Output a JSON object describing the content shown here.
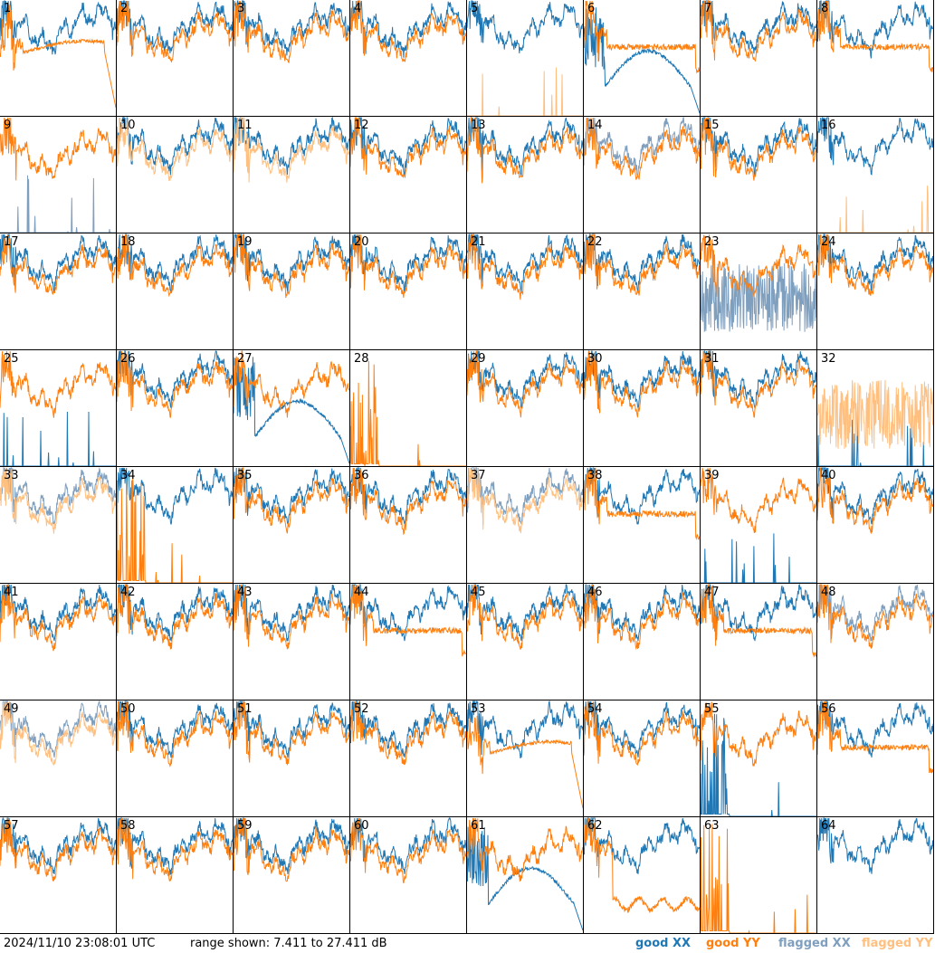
{
  "footer": {
    "timestamp": "2024/11/10 23:08:01 UTC",
    "range": "range shown: 7.411 to 27.411 dB"
  },
  "legend": [
    {
      "label": "good XX",
      "color": "#1f77b4"
    },
    {
      "label": "good YY",
      "color": "#ff7f0e"
    },
    {
      "label": "flagged XX",
      "color": "#7f9fbf"
    },
    {
      "label": "flagged YY",
      "color": "#ffbf7f"
    }
  ],
  "chart_data": {
    "type": "line",
    "title": "",
    "xlabel": "",
    "ylabel": "",
    "ylim": [
      7.411,
      27.411
    ],
    "grid": false,
    "panel_grid": [
      8,
      8
    ],
    "panels": [
      {
        "num": "1",
        "xx": "good",
        "yy": "good",
        "xx_shape": "normal",
        "yy_shape": "dropout-right"
      },
      {
        "num": "2",
        "xx": "good",
        "yy": "good",
        "xx_shape": "normal",
        "yy_shape": "normal"
      },
      {
        "num": "3",
        "xx": "good",
        "yy": "good",
        "xx_shape": "normal",
        "yy_shape": "normal"
      },
      {
        "num": "4",
        "xx": "good",
        "yy": "good",
        "xx_shape": "normal",
        "yy_shape": "normal"
      },
      {
        "num": "5",
        "xx": "good",
        "yy": "flagged",
        "xx_shape": "normal",
        "yy_shape": "spikes-low"
      },
      {
        "num": "6",
        "xx": "good",
        "yy": "good",
        "xx_shape": "bowl",
        "yy_shape": "flat"
      },
      {
        "num": "7",
        "xx": "good",
        "yy": "good",
        "xx_shape": "normal",
        "yy_shape": "normal"
      },
      {
        "num": "8",
        "xx": "good",
        "yy": "good",
        "xx_shape": "normal",
        "yy_shape": "flat"
      },
      {
        "num": "9",
        "xx": "flagged",
        "yy": "good",
        "xx_shape": "spikes-low",
        "yy_shape": "normal"
      },
      {
        "num": "10",
        "xx": "good",
        "yy": "flagged",
        "xx_shape": "normal",
        "yy_shape": "normal"
      },
      {
        "num": "11",
        "xx": "good",
        "yy": "flagged",
        "xx_shape": "normal",
        "yy_shape": "normal"
      },
      {
        "num": "12",
        "xx": "good",
        "yy": "good",
        "xx_shape": "normal",
        "yy_shape": "normal"
      },
      {
        "num": "13",
        "xx": "good",
        "yy": "good",
        "xx_shape": "normal",
        "yy_shape": "normal"
      },
      {
        "num": "14",
        "xx": "flagged",
        "yy": "good",
        "xx_shape": "normal",
        "yy_shape": "normal"
      },
      {
        "num": "15",
        "xx": "good",
        "yy": "good",
        "xx_shape": "normal",
        "yy_shape": "normal"
      },
      {
        "num": "16",
        "xx": "good",
        "yy": "flagged",
        "xx_shape": "normal",
        "yy_shape": "spikes-low"
      },
      {
        "num": "17",
        "xx": "good",
        "yy": "good",
        "xx_shape": "normal",
        "yy_shape": "normal"
      },
      {
        "num": "18",
        "xx": "good",
        "yy": "good",
        "xx_shape": "normal",
        "yy_shape": "normal"
      },
      {
        "num": "19",
        "xx": "good",
        "yy": "good",
        "xx_shape": "normal",
        "yy_shape": "normal"
      },
      {
        "num": "20",
        "xx": "good",
        "yy": "good",
        "xx_shape": "normal",
        "yy_shape": "normal"
      },
      {
        "num": "21",
        "xx": "good",
        "yy": "good",
        "xx_shape": "normal",
        "yy_shape": "normal"
      },
      {
        "num": "22",
        "xx": "good",
        "yy": "good",
        "xx_shape": "normal",
        "yy_shape": "normal"
      },
      {
        "num": "23",
        "xx": "flagged",
        "yy": "good",
        "xx_shape": "noise",
        "yy_shape": "normal"
      },
      {
        "num": "24",
        "xx": "good",
        "yy": "good",
        "xx_shape": "normal",
        "yy_shape": "normal"
      },
      {
        "num": "25",
        "xx": "good",
        "yy": "good",
        "xx_shape": "spikes-low",
        "yy_shape": "normal"
      },
      {
        "num": "26",
        "xx": "good",
        "yy": "good",
        "xx_shape": "normal",
        "yy_shape": "normal"
      },
      {
        "num": "27",
        "xx": "good",
        "yy": "good",
        "xx_shape": "bowl",
        "yy_shape": "normal"
      },
      {
        "num": "28",
        "xx": "none",
        "yy": "good",
        "xx_shape": "none",
        "yy_shape": "spikes-left"
      },
      {
        "num": "29",
        "xx": "good",
        "yy": "good",
        "xx_shape": "normal",
        "yy_shape": "normal"
      },
      {
        "num": "30",
        "xx": "good",
        "yy": "good",
        "xx_shape": "normal",
        "yy_shape": "normal"
      },
      {
        "num": "31",
        "xx": "good",
        "yy": "good",
        "xx_shape": "normal",
        "yy_shape": "normal"
      },
      {
        "num": "32",
        "xx": "good",
        "yy": "flagged",
        "xx_shape": "spikes-low",
        "yy_shape": "noise"
      },
      {
        "num": "33",
        "xx": "flagged",
        "yy": "flagged",
        "xx_shape": "normal",
        "yy_shape": "normal"
      },
      {
        "num": "34",
        "xx": "good",
        "yy": "good",
        "xx_shape": "normal",
        "yy_shape": "spikes-left"
      },
      {
        "num": "35",
        "xx": "good",
        "yy": "good",
        "xx_shape": "normal",
        "yy_shape": "normal"
      },
      {
        "num": "36",
        "xx": "good",
        "yy": "good",
        "xx_shape": "normal",
        "yy_shape": "normal"
      },
      {
        "num": "37",
        "xx": "flagged",
        "yy": "flagged",
        "xx_shape": "normal",
        "yy_shape": "normal"
      },
      {
        "num": "38",
        "xx": "good",
        "yy": "good",
        "xx_shape": "normal",
        "yy_shape": "flat"
      },
      {
        "num": "39",
        "xx": "good",
        "yy": "good",
        "xx_shape": "spikes-low",
        "yy_shape": "normal"
      },
      {
        "num": "40",
        "xx": "good",
        "yy": "good",
        "xx_shape": "normal",
        "yy_shape": "normal"
      },
      {
        "num": "41",
        "xx": "good",
        "yy": "good",
        "xx_shape": "normal",
        "yy_shape": "normal"
      },
      {
        "num": "42",
        "xx": "good",
        "yy": "good",
        "xx_shape": "normal",
        "yy_shape": "normal"
      },
      {
        "num": "43",
        "xx": "good",
        "yy": "good",
        "xx_shape": "normal",
        "yy_shape": "normal"
      },
      {
        "num": "44",
        "xx": "good",
        "yy": "good",
        "xx_shape": "normal",
        "yy_shape": "flat"
      },
      {
        "num": "45",
        "xx": "good",
        "yy": "good",
        "xx_shape": "normal",
        "yy_shape": "normal"
      },
      {
        "num": "46",
        "xx": "good",
        "yy": "good",
        "xx_shape": "normal",
        "yy_shape": "normal"
      },
      {
        "num": "47",
        "xx": "good",
        "yy": "good",
        "xx_shape": "normal",
        "yy_shape": "flat"
      },
      {
        "num": "48",
        "xx": "flagged",
        "yy": "good",
        "xx_shape": "normal",
        "yy_shape": "normal"
      },
      {
        "num": "49",
        "xx": "flagged",
        "yy": "flagged",
        "xx_shape": "normal",
        "yy_shape": "normal"
      },
      {
        "num": "50",
        "xx": "good",
        "yy": "good",
        "xx_shape": "normal",
        "yy_shape": "normal"
      },
      {
        "num": "51",
        "xx": "good",
        "yy": "good",
        "xx_shape": "normal",
        "yy_shape": "normal"
      },
      {
        "num": "52",
        "xx": "good",
        "yy": "good",
        "xx_shape": "normal",
        "yy_shape": "normal"
      },
      {
        "num": "53",
        "xx": "good",
        "yy": "good",
        "xx_shape": "normal",
        "yy_shape": "dropout-right"
      },
      {
        "num": "54",
        "xx": "good",
        "yy": "good",
        "xx_shape": "normal",
        "yy_shape": "normal"
      },
      {
        "num": "55",
        "xx": "good",
        "yy": "good",
        "xx_shape": "spikes-left",
        "yy_shape": "normal"
      },
      {
        "num": "56",
        "xx": "good",
        "yy": "good",
        "xx_shape": "normal",
        "yy_shape": "flat"
      },
      {
        "num": "57",
        "xx": "good",
        "yy": "good",
        "xx_shape": "normal",
        "yy_shape": "normal"
      },
      {
        "num": "58",
        "xx": "good",
        "yy": "good",
        "xx_shape": "normal",
        "yy_shape": "normal"
      },
      {
        "num": "59",
        "xx": "good",
        "yy": "good",
        "xx_shape": "normal",
        "yy_shape": "normal"
      },
      {
        "num": "60",
        "xx": "good",
        "yy": "good",
        "xx_shape": "normal",
        "yy_shape": "normal"
      },
      {
        "num": "61",
        "xx": "good",
        "yy": "good",
        "xx_shape": "bowl",
        "yy_shape": "normal"
      },
      {
        "num": "62",
        "xx": "good",
        "yy": "good",
        "xx_shape": "normal",
        "yy_shape": "low"
      },
      {
        "num": "63",
        "xx": "none",
        "yy": "good",
        "xx_shape": "none",
        "yy_shape": "spikes-left"
      },
      {
        "num": "64",
        "xx": "good",
        "yy": "none",
        "xx_shape": "normal",
        "yy_shape": "none"
      }
    ]
  }
}
